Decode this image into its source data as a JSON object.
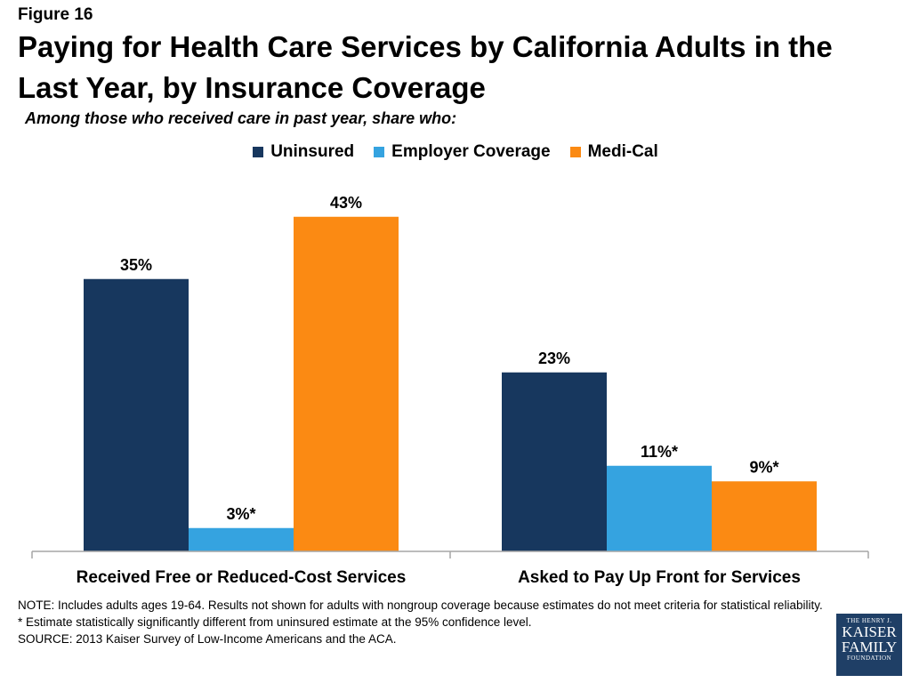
{
  "figure_label": "Figure 16",
  "logo": {
    "line1": "THE HENRY J.",
    "line2": "KAISER",
    "line3": "FAMILY",
    "line4": "FOUNDATION"
  },
  "notes": {
    "note": "NOTE: Includes adults ages 19-64. Results not shown for adults with nongroup coverage because estimates do not meet criteria for statistical reliability.",
    "asterisk": "* Estimate statistically significantly different from uninsured estimate  at the 95% confidence level.",
    "source": "SOURCE: 2013 Kaiser Survey of Low-Income Americans and the ACA."
  },
  "chart_data": {
    "type": "bar",
    "title": "Paying for Health Care Services by California Adults in the Last Year, by Insurance Coverage",
    "subtitle": "Among those who received care in past year, share who:",
    "categories": [
      "Received Free or Reduced-Cost Services",
      "Asked to Pay Up Front for Services"
    ],
    "series": [
      {
        "name": "Uninsured",
        "color": "#17375e",
        "values": [
          35,
          23
        ],
        "labels": [
          "35%",
          "23%"
        ]
      },
      {
        "name": "Employer Coverage",
        "color": "#35a3e0",
        "values": [
          3,
          11
        ],
        "labels": [
          "3%*",
          "11%*"
        ]
      },
      {
        "name": "Medi-Cal",
        "color": "#fb8a13",
        "values": [
          43,
          9
        ],
        "labels": [
          "43%",
          "9%*"
        ]
      }
    ],
    "ylim": [
      0,
      48
    ],
    "grid": false,
    "legend_position": "top"
  }
}
